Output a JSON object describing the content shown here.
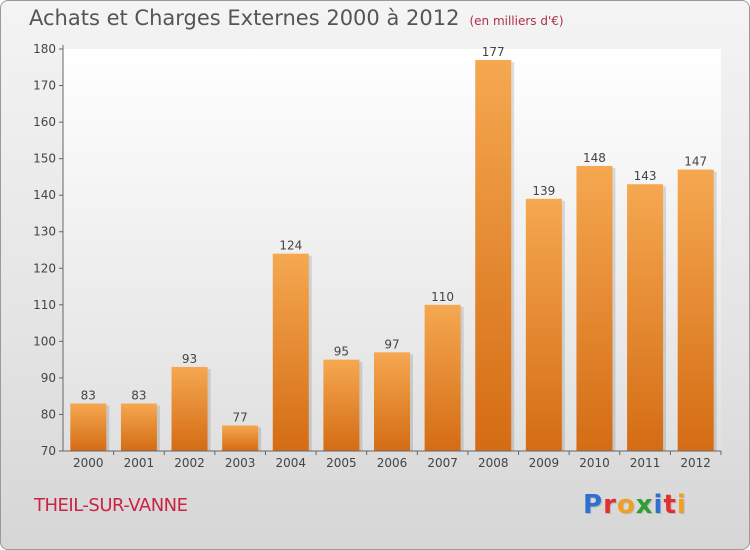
{
  "chart_data": {
    "type": "bar",
    "title": "Achats et Charges Externes 2000 à 2012",
    "subtitle": "(en milliers d'€)",
    "categories": [
      "2000",
      "2001",
      "2002",
      "2003",
      "2004",
      "2005",
      "2006",
      "2007",
      "2008",
      "2009",
      "2010",
      "2011",
      "2012"
    ],
    "values": [
      83,
      83,
      93,
      77,
      124,
      95,
      97,
      110,
      177,
      139,
      148,
      143,
      147
    ],
    "ylim": [
      70,
      180
    ],
    "yticks": [
      70,
      80,
      90,
      100,
      110,
      120,
      130,
      140,
      150,
      160,
      170,
      180
    ],
    "grid": false,
    "bar_color_top": "#f5a850",
    "bar_color_bottom": "#d46c14"
  },
  "footer": {
    "commune": "THEIL-SUR-VANNE",
    "logo_letters": [
      {
        "char": "P",
        "color": "#2e6fd0"
      },
      {
        "char": "r",
        "color": "#e03030"
      },
      {
        "char": "o",
        "color": "#f0a020"
      },
      {
        "char": "x",
        "color": "#2e9e30"
      },
      {
        "char": "i",
        "color": "#2e6fd0"
      },
      {
        "char": "t",
        "color": "#e03030"
      },
      {
        "char": "i",
        "color": "#f0a020"
      }
    ]
  }
}
